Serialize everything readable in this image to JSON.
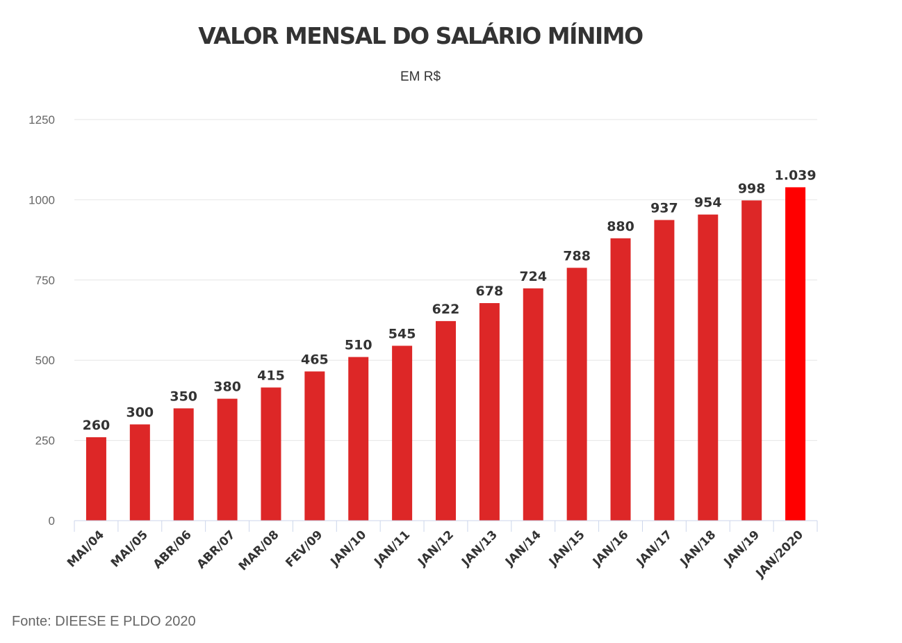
{
  "chart_data": {
    "type": "bar",
    "title": "VALOR MENSAL DO SALÁRIO MÍNIMO",
    "subtitle": "EM R$",
    "categories": [
      "MAI/04",
      "MAI/05",
      "ABR/06",
      "ABR/07",
      "MAR/08",
      "FEV/09",
      "JAN/10",
      "JAN/11",
      "JAN/12",
      "JAN/13",
      "JAN/14",
      "JAN/15",
      "JAN/16",
      "JAN/17",
      "JAN/18",
      "JAN/19",
      "JAN/2020"
    ],
    "values": [
      260,
      300,
      350,
      380,
      415,
      465,
      510,
      545,
      622,
      678,
      724,
      788,
      880,
      937,
      954,
      998,
      1039
    ],
    "data_labels": [
      "260",
      "300",
      "350",
      "380",
      "415",
      "465",
      "510",
      "545",
      "622",
      "678",
      "724",
      "788",
      "880",
      "937",
      "954",
      "998",
      "1.039"
    ],
    "ylim": [
      0,
      1250
    ],
    "yticks": [
      0,
      250,
      500,
      750,
      1000,
      1250
    ],
    "grid": true,
    "legend": "none",
    "colors": {
      "bar": "#dd2727",
      "highlight_bar": "#ff0000",
      "grid": "#e6e6e6",
      "axis": "#ccd6eb"
    },
    "highlight_index": 16
  },
  "source": "Fonte: DIEESE E PLDO 2020"
}
